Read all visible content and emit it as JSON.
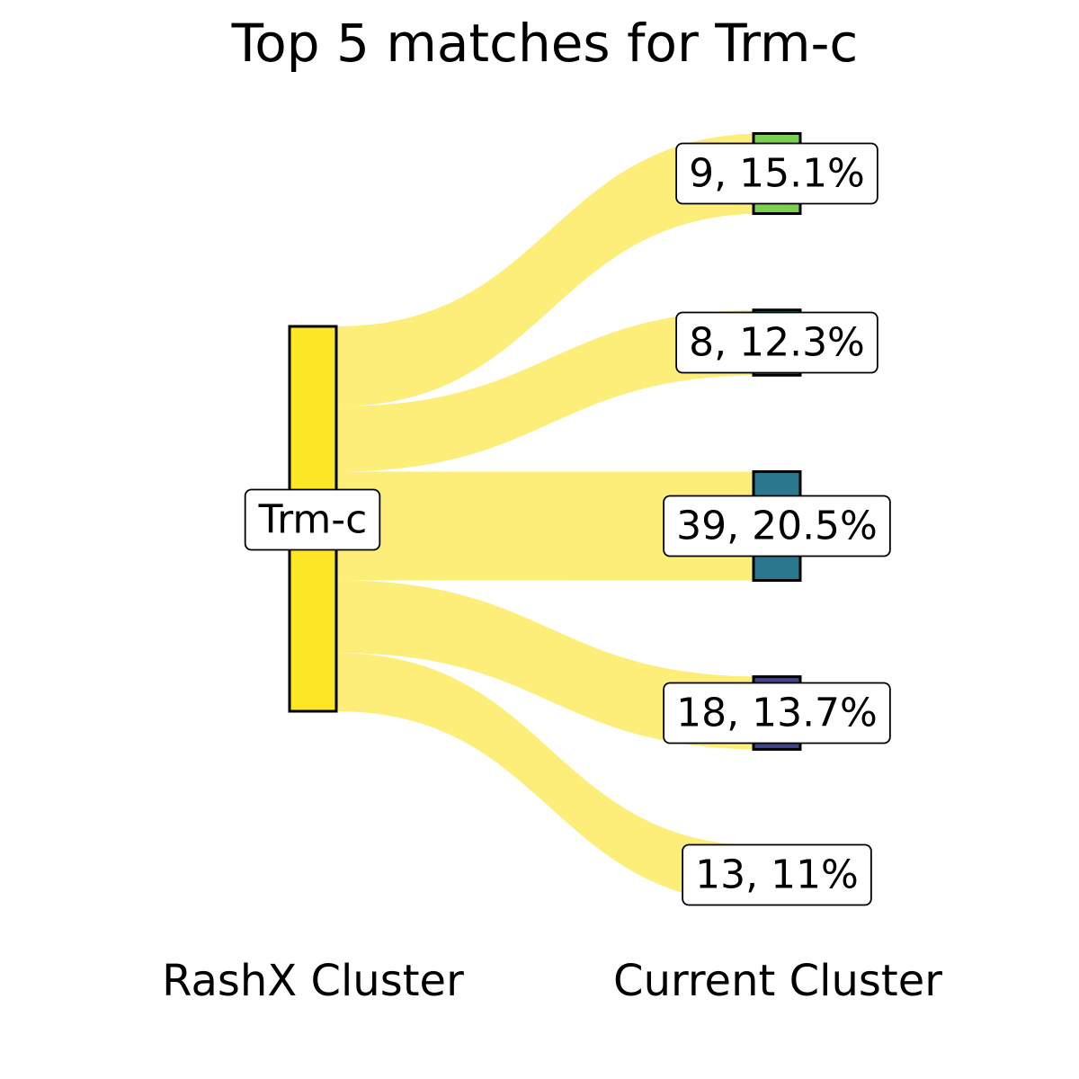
{
  "chart_data": {
    "type": "sankey",
    "title": "Top 5 matches for Trm-c",
    "source": {
      "label": "Trm-c",
      "color": "#fde725"
    },
    "targets": [
      {
        "cluster": "9",
        "percent": "15.1%",
        "label": "9, 15.1%",
        "color": "#7ad151",
        "flow": 15.1
      },
      {
        "cluster": "8",
        "percent": "12.3%",
        "label": "8, 12.3%",
        "color": "#22a884",
        "flow": 12.3
      },
      {
        "cluster": "39",
        "percent": "20.5%",
        "label": "39, 20.5%",
        "color": "#2a788e",
        "flow": 20.5
      },
      {
        "cluster": "18",
        "percent": "13.7%",
        "label": "18, 13.7%",
        "color": "#414487",
        "flow": 13.7
      },
      {
        "cluster": "13",
        "percent": "11%",
        "label": "13, 11%",
        "color": "#440154",
        "flow": 11.0
      }
    ],
    "flow_color": "#fdee7a",
    "xlabel_left": "RashX Cluster",
    "xlabel_right": "Current Cluster"
  }
}
